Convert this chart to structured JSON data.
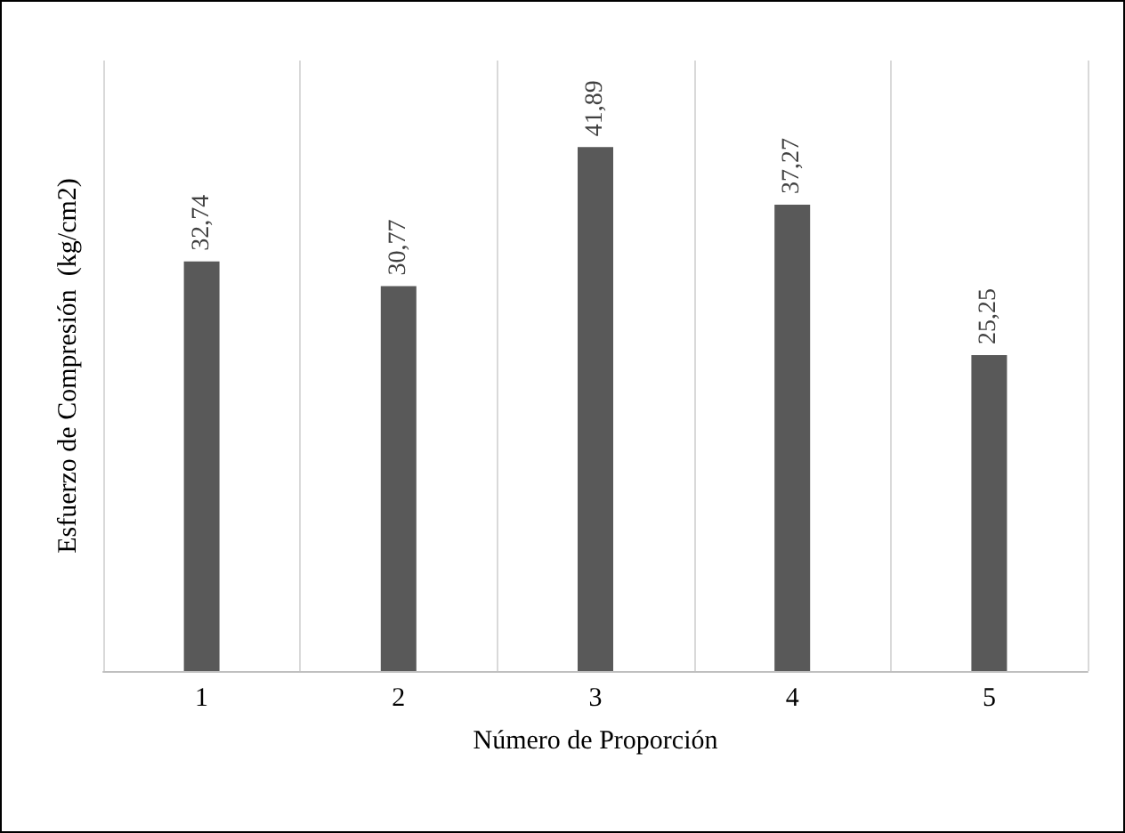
{
  "chart_data": {
    "type": "bar",
    "xlabel": "Número de Proporción",
    "ylabel": "Esfuerzo de Compresión  (kg/cm2)",
    "categories": [
      "1",
      "2",
      "3",
      "4",
      "5"
    ],
    "values": [
      32.74,
      30.77,
      41.89,
      37.27,
      25.25
    ],
    "value_labels": [
      "32,74",
      "30,77",
      "41,89",
      "37,27",
      "25,25"
    ],
    "color": "#595959",
    "grid": "x"
  }
}
